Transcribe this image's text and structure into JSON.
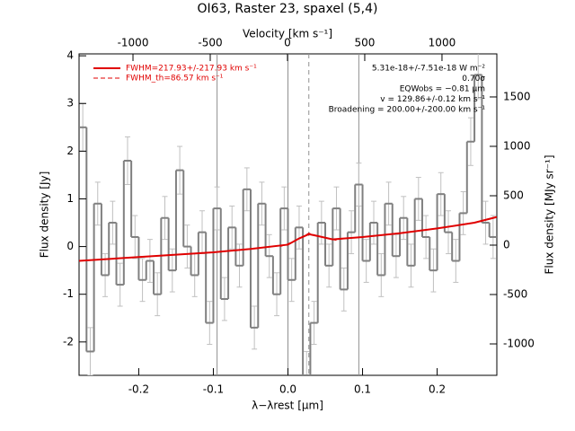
{
  "chart_data": {
    "type": "histogram",
    "title": "OI63, Raster 23, spaxel (5,4)",
    "xlabel": "λ−λrest [μm]",
    "ylabel": "Flux density [Jy]",
    "x2label": "Velocity [km s⁻¹]",
    "y2label": "Flux density [MJy sr⁻¹]",
    "xlim": [
      -0.28,
      0.28
    ],
    "ylim": [
      -2.7,
      4.04
    ],
    "x2lim": [
      -1349,
      1355
    ],
    "y2lim": [
      -1318,
      1936
    ],
    "xticks": [
      -0.2,
      -0.1,
      {
        "value": 0,
        "label": "0.0"
      },
      0.1,
      0.2
    ],
    "yticks": [
      -2,
      -1,
      0,
      1,
      2,
      3,
      4
    ],
    "x2ticks": [
      -1000,
      -500,
      0,
      500,
      1000
    ],
    "y2ticks": [
      -1000,
      -500,
      0,
      500,
      1000,
      1500
    ],
    "color": "#808080",
    "bins": [
      -0.28,
      -0.27,
      -0.26,
      -0.25,
      -0.24,
      -0.23,
      -0.22,
      -0.21,
      -0.2,
      -0.19,
      -0.18,
      -0.17,
      -0.16,
      -0.15,
      -0.14,
      -0.13,
      -0.12,
      -0.11,
      -0.1,
      -0.09,
      -0.08,
      -0.07,
      -0.06,
      -0.05,
      -0.04,
      -0.03,
      -0.02,
      -0.01,
      0,
      0.01,
      0.02,
      0.03,
      0.04,
      0.05,
      0.06,
      0.07,
      0.08,
      0.09,
      0.1,
      0.11,
      0.12,
      0.13,
      0.14,
      0.15,
      0.16,
      0.17,
      0.18,
      0.19,
      0.2,
      0.21,
      0.22,
      0.23,
      0.24,
      0.25,
      0.26,
      0.27,
      0.28
    ],
    "values": [
      2.5,
      -2.2,
      0.9,
      -0.6,
      0.5,
      -0.8,
      1.8,
      0.2,
      -0.7,
      -0.3,
      -1.0,
      0.6,
      -0.5,
      1.6,
      0.0,
      -0.6,
      0.3,
      -1.6,
      0.8,
      -1.1,
      0.4,
      -0.4,
      1.2,
      -1.7,
      0.9,
      -0.2,
      -1.0,
      0.8,
      -0.7,
      0.4,
      -2.7,
      -1.6,
      0.5,
      -0.4,
      0.8,
      -0.9,
      0.3,
      1.3,
      -0.3,
      0.5,
      -0.6,
      0.9,
      -0.2,
      0.6,
      -0.4,
      1.0,
      0.2,
      -0.5,
      1.1,
      0.3,
      -0.3,
      0.7,
      2.2,
      3.6,
      0.5,
      0.2
    ],
    "errors": [
      0.5,
      0.5,
      0.45,
      0.45,
      0.45,
      0.45,
      0.5,
      0.45,
      0.45,
      0.45,
      0.45,
      0.45,
      0.45,
      0.5,
      0.45,
      0.45,
      0.45,
      0.45,
      0.45,
      0.45,
      0.45,
      0.45,
      0.45,
      0.45,
      0.45,
      0.45,
      0.45,
      0.45,
      0.45,
      0.45,
      0.5,
      0.45,
      0.45,
      0.45,
      0.45,
      0.45,
      0.45,
      0.45,
      0.45,
      0.45,
      0.45,
      0.45,
      0.45,
      0.45,
      0.45,
      0.45,
      0.45,
      0.45,
      0.45,
      0.45,
      0.45,
      0.45,
      0.5,
      0.5,
      0.45,
      0.45
    ],
    "series": [
      {
        "name": "FWHM=217.93+/-217.93 km s⁻¹",
        "color": "#e00000",
        "dashed": false,
        "x": [
          -0.28,
          -0.2,
          -0.1,
          -0.05,
          0,
          0.015,
          0.028,
          0.04,
          0.06,
          0.1,
          0.15,
          0.2,
          0.25,
          0.28
        ],
        "values": [
          -0.3,
          -0.22,
          -0.12,
          -0.05,
          0.04,
          0.17,
          0.26,
          0.22,
          0.15,
          0.2,
          0.28,
          0.38,
          0.5,
          0.62
        ]
      },
      {
        "name": "FWHM_th=86.57 km s⁻¹",
        "color": "#e00000",
        "dashed": true,
        "x": [
          -0.01,
          0.01,
          0.028,
          0.045,
          0.065
        ],
        "values": [
          0.0,
          0.12,
          0.28,
          0.2,
          0.13
        ]
      }
    ],
    "vlines": [
      -0.095,
      0,
      0.095
    ],
    "dashed_vline": 0.028,
    "annotations": [
      "5.31e-18+/-7.51e-18 W m⁻²",
      "0.70σ",
      "EQWobs = −0.81 μm",
      "v = 129.86+/-0.12 km s⁻¹",
      "Broadening = 200.00+/-200.00 km s⁻¹"
    ]
  }
}
